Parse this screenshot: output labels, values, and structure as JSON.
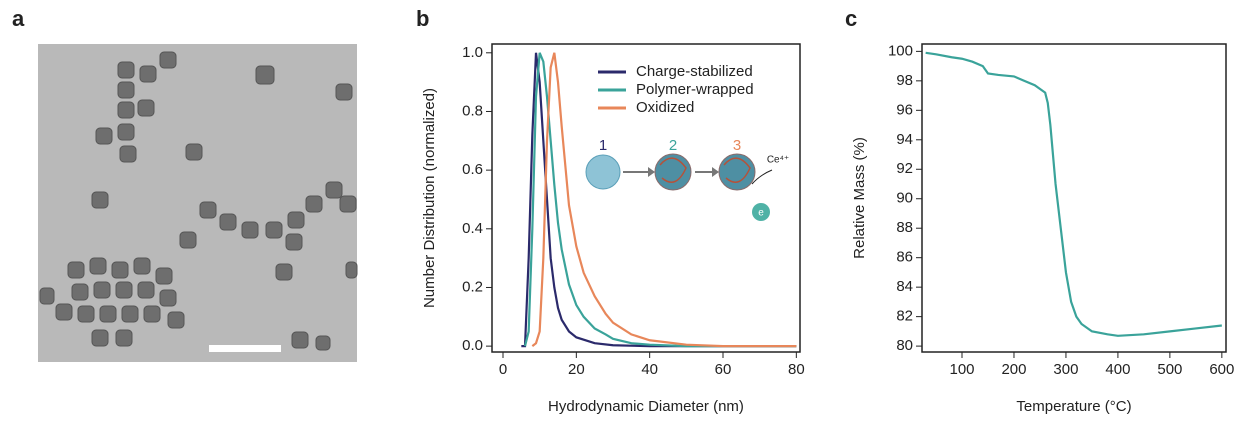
{
  "panel_labels": [
    "a",
    "b",
    "c"
  ],
  "chart_data": [
    {
      "type": "line",
      "xlabel": "Hydrodynamic Diameter (nm)",
      "ylabel": "Number Distribution (normalized)",
      "xlim": [
        -3,
        81
      ],
      "xticks": [
        0,
        20,
        40,
        60,
        80
      ],
      "ylim": [
        -0.02,
        1.03
      ],
      "yticks": [
        {
          "value": 0,
          "label": "0.0"
        },
        0.2,
        0.4,
        0.6,
        0.8,
        {
          "value": 1,
          "label": "1.0"
        }
      ],
      "legend": "upper right",
      "inset_labels": [
        "1",
        "2",
        "3",
        "Ce⁴⁺",
        "e"
      ],
      "series": [
        {
          "name": "Charge-stabilized",
          "color": "#2b2a6b",
          "x": [
            5,
            6,
            7,
            8,
            9,
            10,
            11,
            12,
            13,
            14,
            15,
            16,
            18,
            20,
            25,
            30,
            40,
            80
          ],
          "values": [
            0,
            0,
            0.3,
            0.72,
            1.0,
            0.9,
            0.7,
            0.5,
            0.3,
            0.2,
            0.13,
            0.09,
            0.05,
            0.03,
            0.01,
            0.003,
            0,
            0
          ]
        },
        {
          "name": "Polymer-wrapped",
          "color": "#3aa39a",
          "x": [
            6,
            7,
            8,
            9,
            10,
            11,
            12,
            13,
            14,
            15,
            16,
            18,
            20,
            22,
            25,
            28,
            30,
            35,
            40,
            50,
            80
          ],
          "values": [
            0,
            0.05,
            0.4,
            0.85,
            1.0,
            0.97,
            0.85,
            0.7,
            0.55,
            0.42,
            0.33,
            0.21,
            0.14,
            0.1,
            0.06,
            0.04,
            0.025,
            0.01,
            0.005,
            0,
            0
          ]
        },
        {
          "name": "Oxidized",
          "color": "#e8875a",
          "x": [
            8,
            9,
            10,
            11,
            12,
            13,
            14,
            15,
            16,
            18,
            20,
            22,
            25,
            28,
            30,
            35,
            40,
            50,
            60,
            80
          ],
          "values": [
            0,
            0.01,
            0.05,
            0.3,
            0.7,
            0.95,
            1.0,
            0.9,
            0.75,
            0.48,
            0.34,
            0.25,
            0.17,
            0.11,
            0.08,
            0.04,
            0.02,
            0.005,
            0,
            0
          ]
        }
      ]
    },
    {
      "type": "line",
      "xlabel": "Temperature (°C)",
      "ylabel": "Relative Mass (%)",
      "xlim": [
        23,
        608
      ],
      "xticks": [
        100,
        200,
        300,
        400,
        500,
        600
      ],
      "ylim": [
        79.6,
        100.5
      ],
      "yticks": [
        80,
        82,
        84,
        86,
        88,
        90,
        92,
        94,
        96,
        98,
        100
      ],
      "series": [
        {
          "name": null,
          "color": "#3aa39a",
          "x": [
            30,
            50,
            80,
            100,
            120,
            140,
            150,
            170,
            200,
            220,
            240,
            260,
            265,
            270,
            275,
            280,
            290,
            300,
            310,
            320,
            330,
            350,
            380,
            400,
            450,
            500,
            550,
            600
          ],
          "values": [
            99.9,
            99.8,
            99.6,
            99.5,
            99.3,
            99.0,
            98.5,
            98.4,
            98.3,
            98.0,
            97.7,
            97.2,
            96.5,
            95,
            93,
            91,
            88,
            85,
            83,
            82,
            81.5,
            81,
            80.8,
            80.7,
            80.8,
            81,
            81.2,
            81.4
          ]
        }
      ]
    }
  ]
}
